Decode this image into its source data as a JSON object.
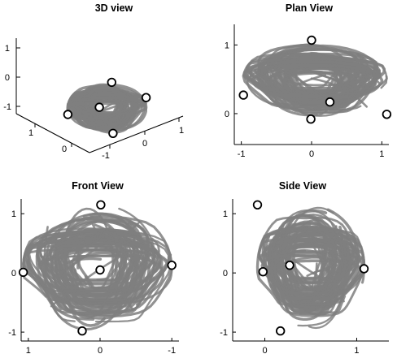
{
  "figure": {
    "colors": {
      "trajectory": "#7f7f7f",
      "marker_fill": "#ffffff",
      "marker_edge": "#000000",
      "axes": "#000000"
    }
  },
  "chart_data": [
    {
      "type": "line",
      "title": "3D view",
      "projection": "3d",
      "x": {
        "ticks": [
          -1,
          0,
          1
        ],
        "tick_labels": [
          "-1",
          "0",
          "1"
        ]
      },
      "y": {
        "ticks": [
          0,
          1
        ],
        "tick_labels": [
          "0",
          "1"
        ]
      },
      "z": {
        "ticks": [
          -1,
          0,
          1
        ],
        "tick_labels": [
          "-1",
          "0",
          "1"
        ]
      },
      "markers": [
        {
          "x": 0.0,
          "y": -0.05,
          "z": 1.05
        },
        {
          "x": -0.95,
          "y": 0.25,
          "z": 0.2
        },
        {
          "x": 1.05,
          "y": 0.0,
          "z": 0.0
        },
        {
          "x": 0.25,
          "y": 0.15,
          "z": -0.95
        },
        {
          "x": -0.25,
          "y": 0.05,
          "z": 0.25
        }
      ]
    },
    {
      "type": "line",
      "title": "Plan View",
      "xlim": [
        -1.1,
        1.1
      ],
      "ylim": [
        -0.45,
        1.3
      ],
      "x_ticks": [
        -1,
        0,
        1
      ],
      "x_tick_labels": [
        "-1",
        "0",
        "1"
      ],
      "y_ticks": [
        0,
        1
      ],
      "y_tick_labels": [
        "0",
        "1"
      ],
      "markers": [
        {
          "x": 0.0,
          "y": 1.07
        },
        {
          "x": -0.97,
          "y": 0.27
        },
        {
          "x": 1.07,
          "y": -0.01
        },
        {
          "x": 0.26,
          "y": 0.17
        },
        {
          "x": -0.01,
          "y": -0.08
        }
      ]
    },
    {
      "type": "line",
      "title": "Front View",
      "xlim": [
        1.1,
        -1.1
      ],
      "ylim": [
        -1.15,
        1.25
      ],
      "x_ticks": [
        1,
        0,
        -1
      ],
      "x_tick_labels": [
        "1",
        "0",
        "-1"
      ],
      "y_ticks": [
        -1,
        0,
        1
      ],
      "y_tick_labels": [
        "-1",
        "0",
        "1"
      ],
      "markers": [
        {
          "x": -0.01,
          "y": 1.15
        },
        {
          "x": 1.07,
          "y": 0.01
        },
        {
          "x": -1.0,
          "y": 0.13
        },
        {
          "x": 0.0,
          "y": 0.05
        },
        {
          "x": 0.25,
          "y": -0.98
        }
      ]
    },
    {
      "type": "line",
      "title": "Side View",
      "xlim": [
        -0.35,
        1.35
      ],
      "ylim": [
        -1.15,
        1.25
      ],
      "x_ticks": [
        0,
        1
      ],
      "x_tick_labels": [
        "0",
        "1"
      ],
      "y_ticks": [
        -1,
        0,
        1
      ],
      "y_tick_labels": [
        "-1",
        "0",
        "1"
      ],
      "markers": [
        {
          "x": -0.08,
          "y": 1.15
        },
        {
          "x": -0.02,
          "y": 0.02
        },
        {
          "x": 0.27,
          "y": 0.13
        },
        {
          "x": 1.08,
          "y": 0.07
        },
        {
          "x": 0.17,
          "y": -0.98
        }
      ]
    }
  ]
}
